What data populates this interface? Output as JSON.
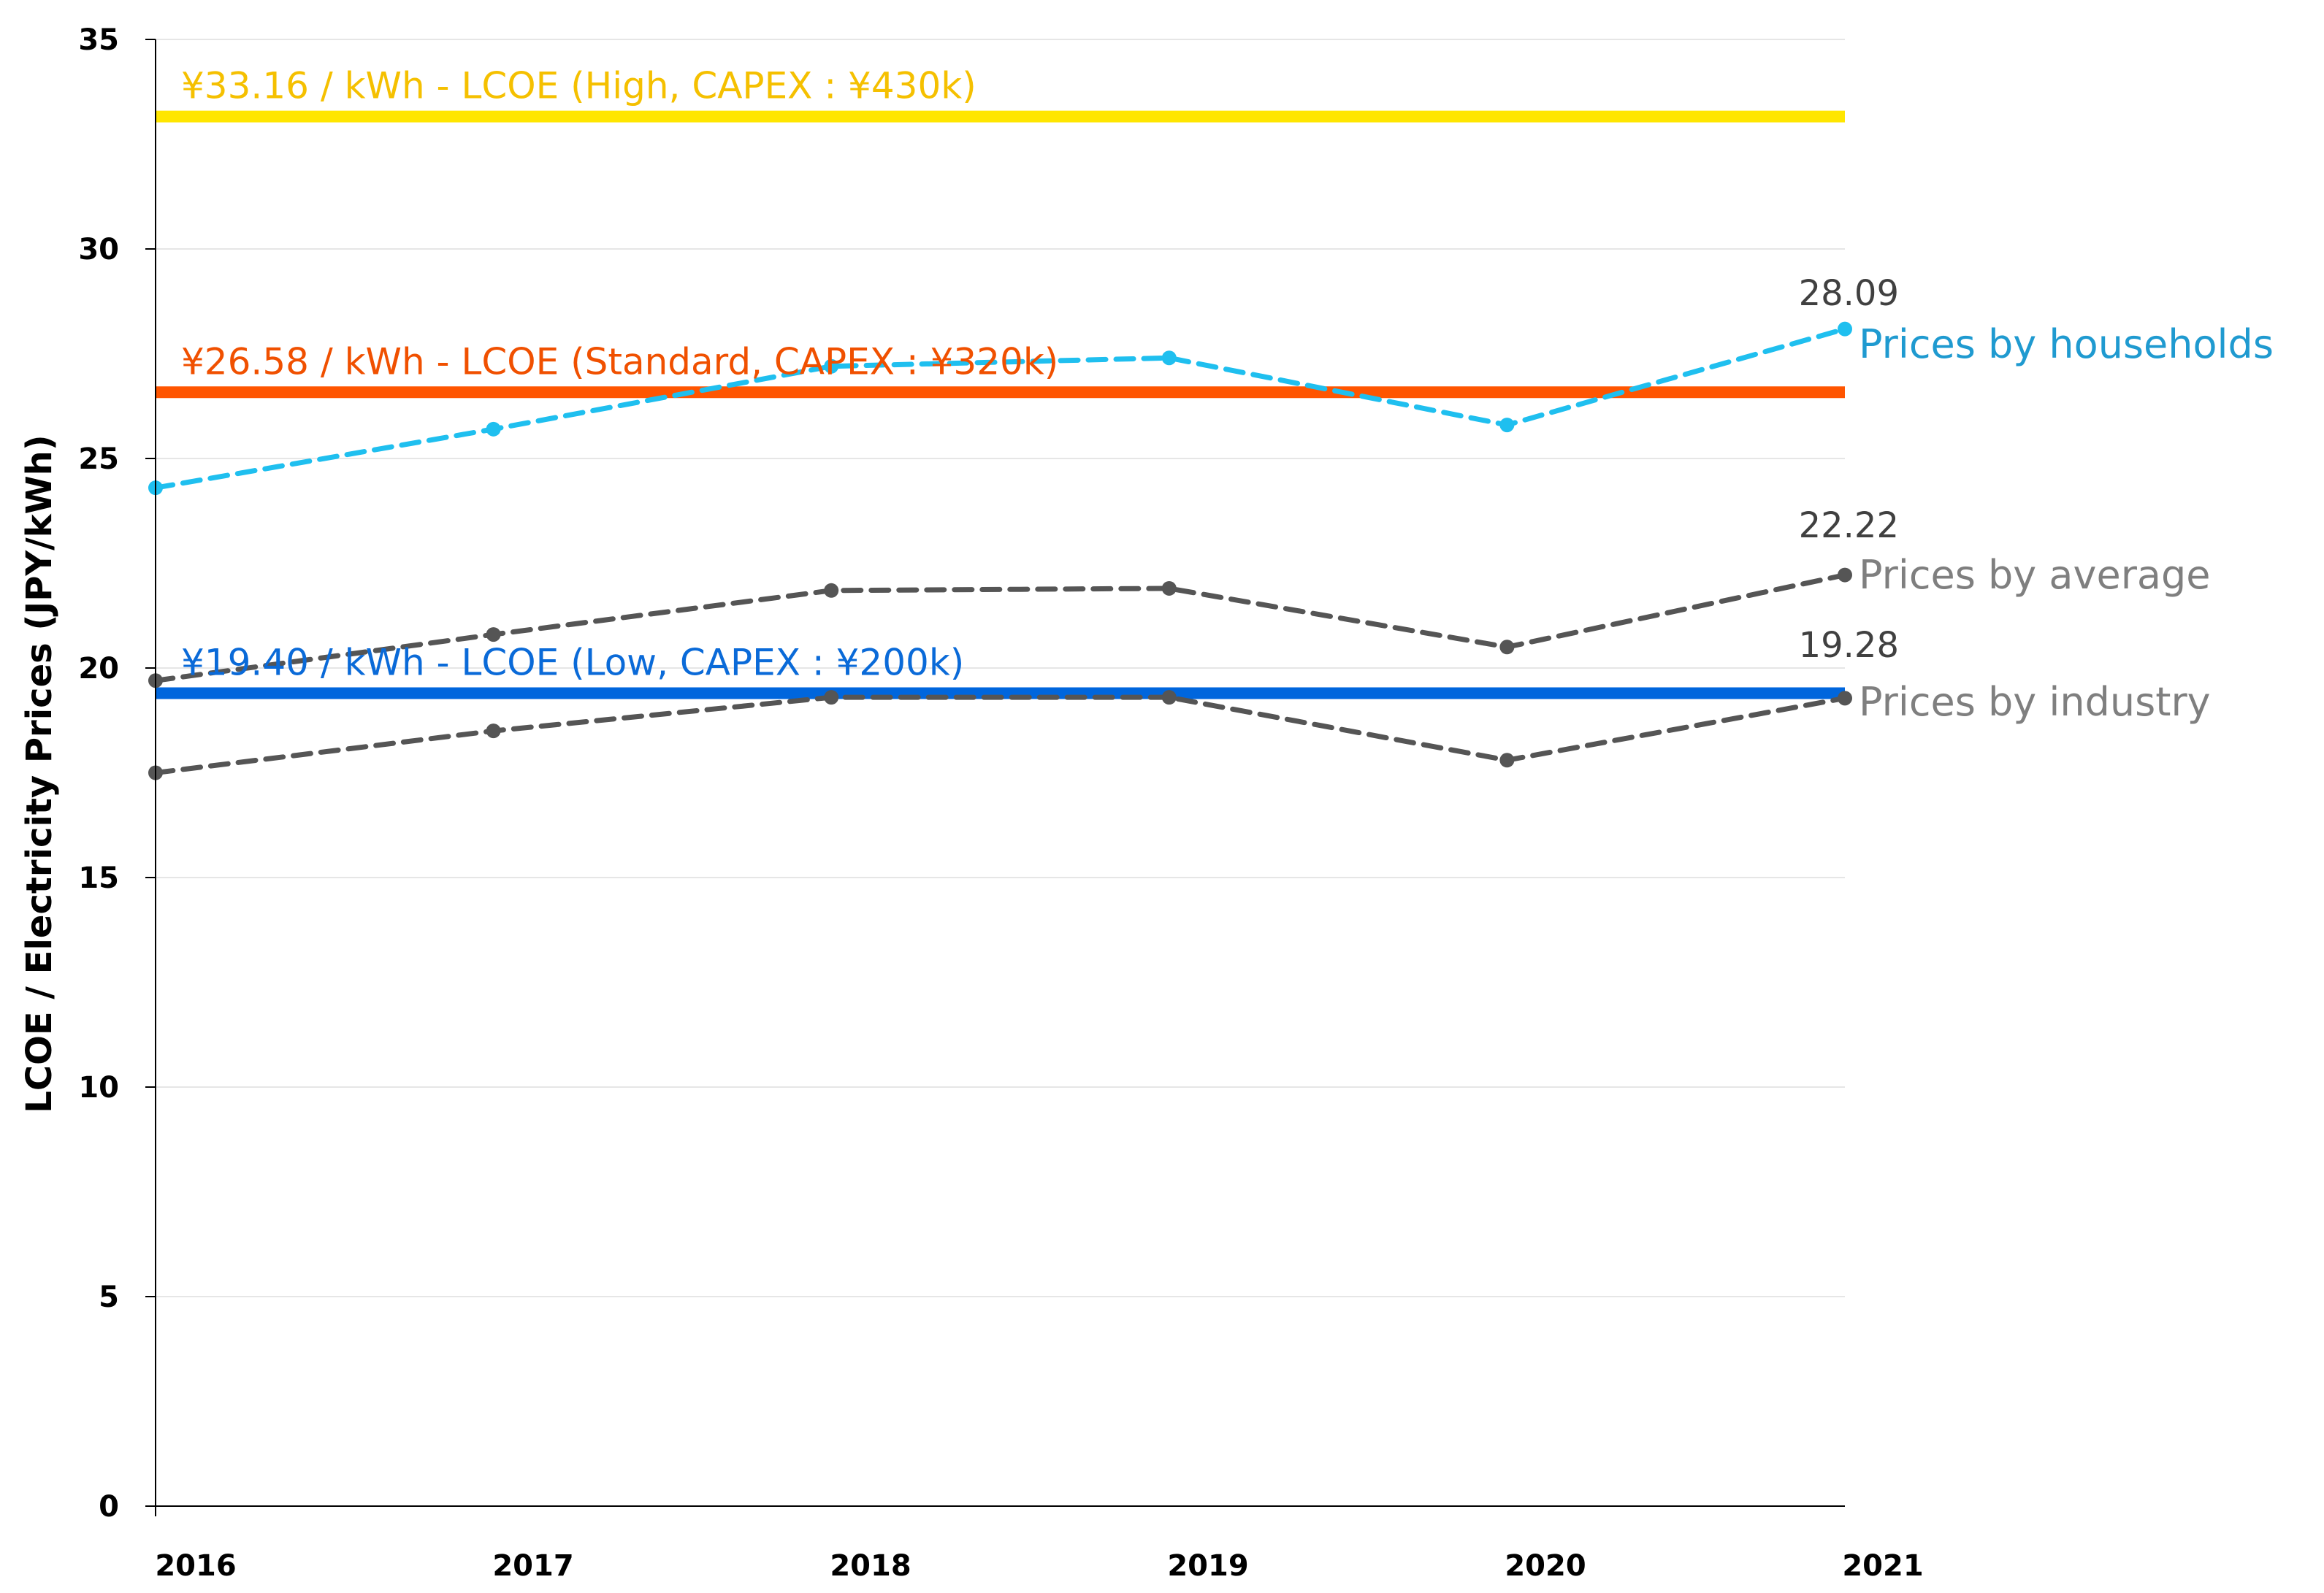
{
  "chart_data": {
    "type": "line",
    "ylabel": "LCOE / Electricity Prices (JPY/kWh)",
    "xlabel": "",
    "categories": [
      "2016",
      "2017",
      "2018",
      "2019",
      "2020",
      "2021"
    ],
    "ylim": [
      0,
      35
    ],
    "yticks": [
      0,
      5,
      10,
      15,
      20,
      25,
      30,
      35
    ],
    "grid": "horizontal",
    "series": [
      {
        "name": "Prices by households",
        "values": [
          24.3,
          25.7,
          27.2,
          27.4,
          25.8,
          28.09
        ],
        "color": "#1FBFEF",
        "style": "dashed",
        "end_label": "28.09"
      },
      {
        "name": "Prices by average",
        "values": [
          19.7,
          20.8,
          21.85,
          21.9,
          20.5,
          22.22
        ],
        "color": "#555555",
        "style": "dashed",
        "end_label": "22.22"
      },
      {
        "name": "Prices by industry",
        "values": [
          17.5,
          18.5,
          19.3,
          19.3,
          17.8,
          19.28
        ],
        "color": "#555555",
        "style": "dashed",
        "end_label": "19.28"
      }
    ],
    "series_label_colors": [
      "#1F9AD0",
      "#7F7F7F",
      "#7F7F7F"
    ],
    "reference_lines": [
      {
        "value": 33.16,
        "label": "¥33.16 / kWh - LCOE (High, CAPEX : ¥430k)",
        "color": "#FFE600",
        "label_color": "#F5C000"
      },
      {
        "value": 26.58,
        "label": "¥26.58 / kWh - LCOE (Standard, CAPEX : ¥320k)",
        "color": "#FF5500",
        "label_color": "#F05000"
      },
      {
        "value": 19.4,
        "label": "¥19.40 / kWh - LCOE (Low, CAPEX : ¥200k)",
        "color": "#0066DD",
        "label_color": "#0A6AD8"
      }
    ]
  }
}
